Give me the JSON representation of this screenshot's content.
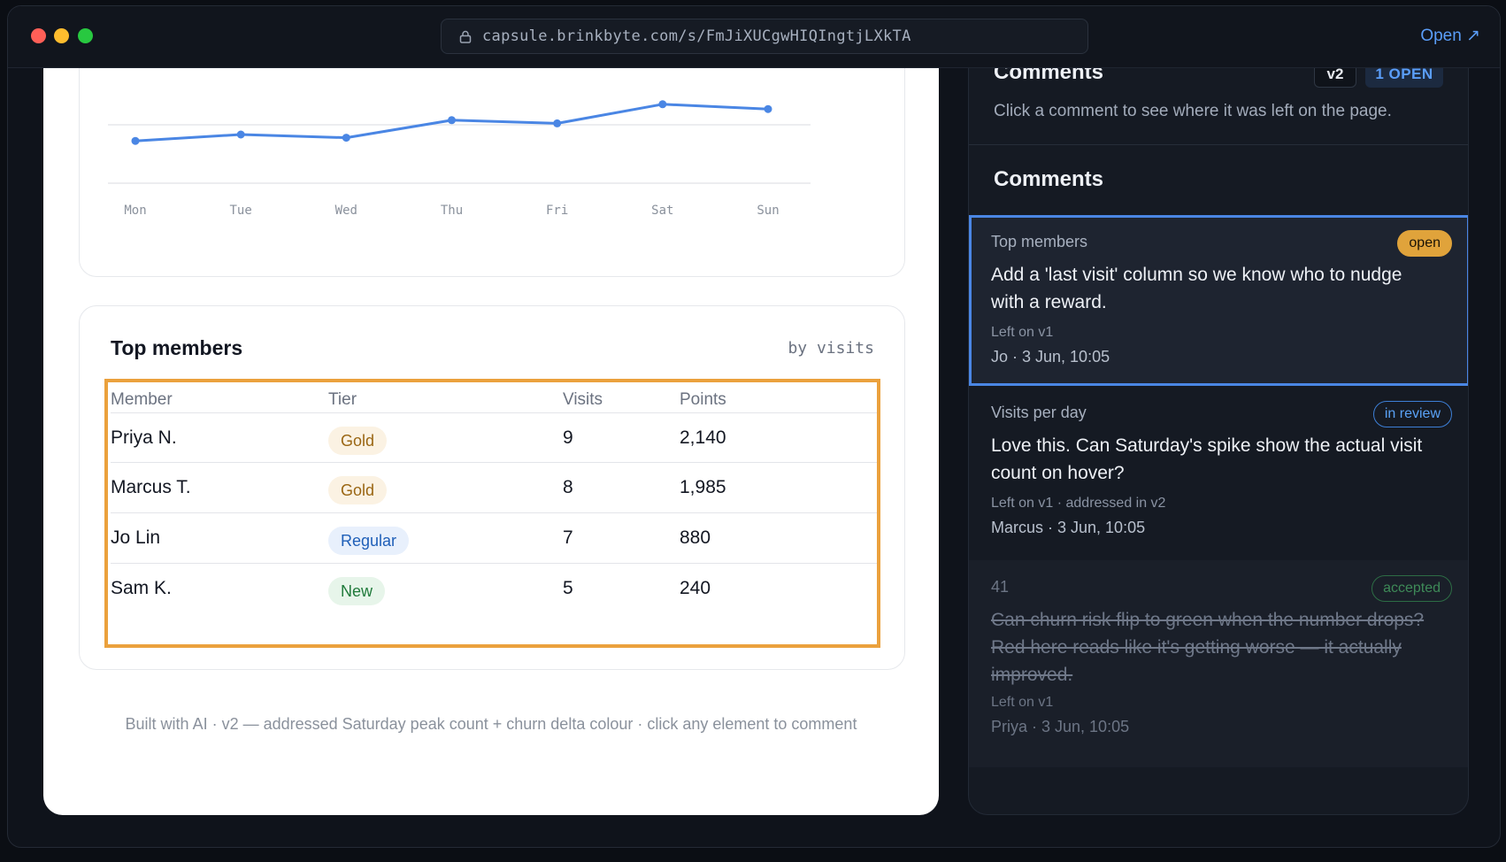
{
  "browser": {
    "url": "capsule.brinkbyte.com/s/FmJiXUCgwHIQIngtjLXkTA",
    "open_label": "Open ↗"
  },
  "chart_data": {
    "type": "line",
    "categories": [
      "Mon",
      "Tue",
      "Wed",
      "Thu",
      "Fri",
      "Sat",
      "Sun"
    ],
    "values": [
      46,
      50,
      48,
      59,
      57,
      69,
      66
    ],
    "ylim": [
      20,
      80
    ],
    "grid": true,
    "color": "#4a86e4"
  },
  "table": {
    "title": "Top members",
    "subtitle": "by visits",
    "columns": [
      "Member",
      "Tier",
      "Visits",
      "Points"
    ],
    "rows": [
      {
        "member": "Priya N.",
        "tier": "Gold",
        "tier_kind": "gold",
        "visits": "9",
        "points": "2,140"
      },
      {
        "member": "Marcus T.",
        "tier": "Gold",
        "tier_kind": "gold",
        "visits": "8",
        "points": "1,985"
      },
      {
        "member": "Jo Lin",
        "tier": "Regular",
        "tier_kind": "regular",
        "visits": "7",
        "points": "880"
      },
      {
        "member": "Sam K.",
        "tier": "New",
        "tier_kind": "new",
        "visits": "5",
        "points": "240"
      }
    ]
  },
  "footer": {
    "text": "Built with AI · v2 — addressed Saturday peak count + churn delta colour · click any element to comment"
  },
  "comments_panel": {
    "title": "Comments",
    "version": "v2",
    "open_count": "1 OPEN",
    "subtitle": "Click a comment to see where it was left on the page.",
    "list_title": "Comments",
    "items": [
      {
        "section": "Top members",
        "status": "open",
        "text": "Add a 'last visit' column so we know who to nudge with a reward.",
        "meta": "Left on v1",
        "author": "Jo · 3 Jun, 10:05"
      },
      {
        "section": "Visits per day",
        "status": "in review",
        "text": "Love this. Can Saturday's spike show the actual visit count on hover?",
        "meta": "Left on v1 · addressed in v2",
        "author": "Marcus · 3 Jun, 10:05"
      },
      {
        "section": "41",
        "status": "accepted",
        "text": "Can churn risk flip to green when the number drops? Red here reads like it's getting worse — it actually improved.",
        "meta": "Left on v1",
        "author": "Priya · 3 Jun, 10:05"
      }
    ]
  }
}
